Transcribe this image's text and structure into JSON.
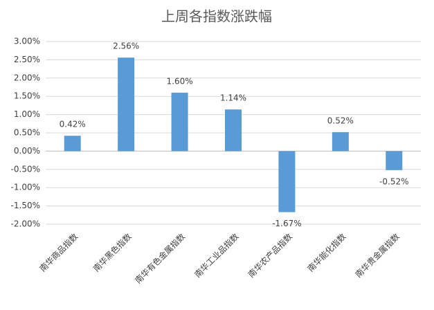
{
  "chart_data": {
    "type": "bar",
    "title": "上周各指数涨跌幅",
    "categories": [
      "南华商品指数",
      "南华黑色指数",
      "南华有色金属指数",
      "南华工业品指数",
      "南华农产品指数",
      "南华能化指数",
      "南华贵金属指数"
    ],
    "values": [
      0.42,
      2.56,
      1.6,
      1.14,
      -1.67,
      0.52,
      -0.52
    ],
    "value_labels": [
      "0.42%",
      "2.56%",
      "1.60%",
      "1.14%",
      "-1.67%",
      "0.52%",
      "-0.52%"
    ],
    "color": "#5b9bd5",
    "ylim": [
      -2,
      3
    ],
    "yticks": [
      {
        "value": -2,
        "label": "-2.00%"
      },
      {
        "value": -1.5,
        "label": "-1.50%"
      },
      {
        "value": -1,
        "label": "-1.00%"
      },
      {
        "value": -0.5,
        "label": "-0.50%"
      },
      {
        "value": 0,
        "label": "0.00%"
      },
      {
        "value": 0.5,
        "label": "0.50%"
      },
      {
        "value": 1,
        "label": "1.00%"
      },
      {
        "value": 1.5,
        "label": "1.50%"
      },
      {
        "value": 2,
        "label": "2.00%"
      },
      {
        "value": 2.5,
        "label": "2.50%"
      },
      {
        "value": 3,
        "label": "3.00%"
      }
    ],
    "grid": true
  }
}
